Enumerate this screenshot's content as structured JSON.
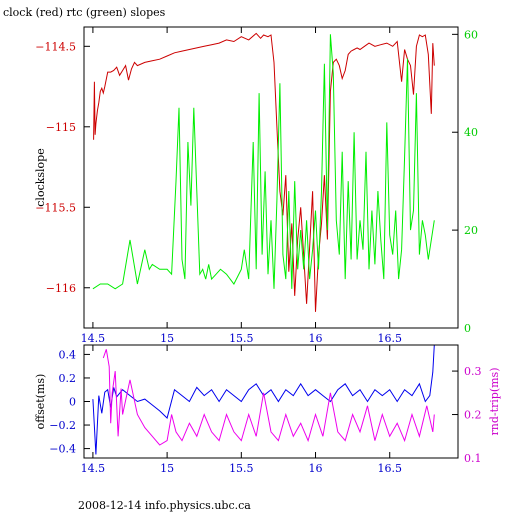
{
  "title": "clock (red) rtc (green) slopes",
  "footer": "2008-12-14 info.physics.ubc.ca",
  "chart_data": [
    {
      "type": "line",
      "title": "clock (red) rtc (green) slopes",
      "xlabel": "",
      "ylabel": "clockslope",
      "y2label": "",
      "xlim": [
        14.44,
        16.96
      ],
      "ylim": [
        -116.25,
        -114.38
      ],
      "y2lim": [
        0,
        61.5
      ],
      "xticks": [
        "14.5",
        "15",
        "15.5",
        "16",
        "16.5"
      ],
      "xtick_values": [
        14.5,
        15,
        15.5,
        16,
        16.5
      ],
      "yticks": [
        "-114.5",
        "-115",
        "-115.5",
        "-116"
      ],
      "ytick_values": [
        -114.5,
        -115,
        -115.5,
        -116
      ],
      "y2ticks": [
        "0",
        "20",
        "40",
        "60"
      ],
      "y2tick_values": [
        0,
        20,
        40,
        60
      ],
      "colors": {
        "axes_left": "#cc0000",
        "axes_right": "#00cc00",
        "frame": "#000000"
      },
      "series": [
        {
          "name": "clock",
          "axis": "left",
          "color": "#cc0000",
          "x": [
            14.505,
            14.51,
            14.515,
            14.52,
            14.53,
            14.54,
            14.55,
            14.56,
            14.57,
            14.58,
            14.6,
            14.62,
            14.64,
            14.66,
            14.68,
            14.7,
            14.72,
            14.74,
            14.76,
            14.78,
            14.8,
            14.85,
            14.9,
            14.95,
            15.0,
            15.05,
            15.1,
            15.15,
            15.2,
            15.25,
            15.3,
            15.35,
            15.4,
            15.45,
            15.5,
            15.55,
            15.6,
            15.63,
            15.65,
            15.68,
            15.7,
            15.72,
            15.74,
            15.76,
            15.78,
            15.8,
            15.82,
            15.84,
            15.86,
            15.88,
            15.9,
            15.92,
            15.94,
            15.96,
            15.98,
            16.0,
            16.02,
            16.04,
            16.06,
            16.08,
            16.1,
            16.12,
            16.14,
            16.16,
            16.18,
            16.2,
            16.22,
            16.24,
            16.26,
            16.28,
            16.3,
            16.33,
            16.36,
            16.4,
            16.44,
            16.48,
            16.52,
            16.55,
            16.58,
            16.6,
            16.62,
            16.64,
            16.66,
            16.68,
            16.7,
            16.72,
            16.74,
            16.76,
            16.78,
            16.79,
            16.8
          ],
          "y": [
            -115.08,
            -114.72,
            -115.05,
            -114.98,
            -114.9,
            -114.85,
            -114.78,
            -114.76,
            -114.79,
            -114.75,
            -114.66,
            -114.66,
            -114.65,
            -114.63,
            -114.68,
            -114.65,
            -114.62,
            -114.71,
            -114.64,
            -114.6,
            -114.62,
            -114.6,
            -114.59,
            -114.58,
            -114.56,
            -114.54,
            -114.53,
            -114.52,
            -114.51,
            -114.5,
            -114.49,
            -114.48,
            -114.46,
            -114.47,
            -114.44,
            -114.46,
            -114.42,
            -114.45,
            -114.43,
            -114.44,
            -114.43,
            -114.6,
            -115.0,
            -115.4,
            -115.55,
            -115.3,
            -115.9,
            -115.6,
            -116.05,
            -115.7,
            -115.5,
            -115.8,
            -116.1,
            -115.75,
            -115.4,
            -116.15,
            -115.8,
            -115.6,
            -115.3,
            -115.7,
            -114.78,
            -114.6,
            -114.58,
            -114.62,
            -114.7,
            -114.65,
            -114.55,
            -114.53,
            -114.52,
            -114.51,
            -114.52,
            -114.5,
            -114.48,
            -114.5,
            -114.49,
            -114.48,
            -114.5,
            -114.47,
            -114.72,
            -114.52,
            -114.58,
            -114.62,
            -114.8,
            -114.5,
            -114.43,
            -114.44,
            -114.43,
            -114.55,
            -114.92,
            -114.48,
            -114.62
          ]
        },
        {
          "name": "rtc",
          "axis": "right",
          "color": "#00ee00",
          "x": [
            14.5,
            14.55,
            14.6,
            14.65,
            14.7,
            14.75,
            14.8,
            14.85,
            14.88,
            14.9,
            14.95,
            15.0,
            15.03,
            15.06,
            15.08,
            15.1,
            15.12,
            15.14,
            15.16,
            15.18,
            15.2,
            15.22,
            15.24,
            15.26,
            15.28,
            15.3,
            15.33,
            15.36,
            15.4,
            15.45,
            15.5,
            15.52,
            15.55,
            15.58,
            15.6,
            15.62,
            15.64,
            15.66,
            15.68,
            15.7,
            15.72,
            15.74,
            15.76,
            15.78,
            15.8,
            15.82,
            15.84,
            15.86,
            15.88,
            15.9,
            15.92,
            15.94,
            15.96,
            15.98,
            16.0,
            16.02,
            16.04,
            16.06,
            16.08,
            16.1,
            16.12,
            16.14,
            16.16,
            16.18,
            16.2,
            16.22,
            16.24,
            16.26,
            16.28,
            16.3,
            16.32,
            16.34,
            16.36,
            16.38,
            16.4,
            16.42,
            16.44,
            16.46,
            16.48,
            16.5,
            16.52,
            16.54,
            16.56,
            16.58,
            16.6,
            16.62,
            16.64,
            16.66,
            16.68,
            16.7,
            16.72,
            16.74,
            16.76,
            16.78,
            16.8
          ],
          "y": [
            8,
            9,
            9,
            8,
            9,
            18,
            9,
            16,
            12,
            13,
            12,
            12,
            11,
            30,
            45,
            14,
            10,
            38,
            25,
            45,
            28,
            11,
            12,
            10,
            13,
            10,
            11,
            12,
            11,
            9,
            12,
            16,
            10,
            38,
            12,
            48,
            15,
            32,
            11,
            22,
            8,
            26,
            50,
            15,
            10,
            28,
            8,
            30,
            12,
            20,
            12,
            22,
            10,
            16,
            24,
            12,
            28,
            54,
            20,
            60,
            52,
            22,
            15,
            36,
            10,
            30,
            14,
            40,
            14,
            22,
            16,
            36,
            12,
            24,
            13,
            28,
            18,
            10,
            42,
            19,
            15,
            24,
            10,
            16,
            35,
            55,
            20,
            24,
            48,
            15,
            22,
            19,
            14,
            18,
            22
          ]
        }
      ]
    },
    {
      "type": "line",
      "title": "",
      "xlabel": "",
      "ylabel": "offset(ms)",
      "y2label": "rnd-trip(ms)",
      "xlim": [
        14.44,
        16.96
      ],
      "ylim": [
        -0.48,
        0.48
      ],
      "y2lim": [
        0.1,
        0.36
      ],
      "xticks": [
        "14.5",
        "15",
        "15.5",
        "16",
        "16.5"
      ],
      "xtick_values": [
        14.5,
        15,
        15.5,
        16,
        16.5
      ],
      "yticks": [
        "0.4",
        "0.2",
        "0",
        "-0.2",
        "-0.4"
      ],
      "ytick_values": [
        0.4,
        0.2,
        0,
        -0.2,
        -0.4
      ],
      "y2ticks": [
        "0.3",
        "0.2",
        "0.1"
      ],
      "y2tick_values": [
        0.3,
        0.2,
        0.1
      ],
      "colors": {
        "axes_left": "#0000cc",
        "axes_right": "#cc00cc",
        "frame": "#000000"
      },
      "series": [
        {
          "name": "offset",
          "axis": "left",
          "color": "#0000ee",
          "x": [
            14.5,
            14.52,
            14.54,
            14.56,
            14.58,
            14.6,
            14.62,
            14.64,
            14.66,
            14.7,
            14.75,
            14.8,
            14.85,
            14.9,
            14.95,
            15.0,
            15.05,
            15.1,
            15.15,
            15.2,
            15.25,
            15.3,
            15.35,
            15.4,
            15.45,
            15.5,
            15.55,
            15.6,
            15.65,
            15.7,
            15.75,
            15.8,
            15.85,
            15.9,
            15.95,
            16.0,
            16.05,
            16.1,
            16.15,
            16.2,
            16.25,
            16.3,
            16.35,
            16.4,
            16.45,
            16.5,
            16.55,
            16.6,
            16.65,
            16.7,
            16.74,
            16.77,
            16.79,
            16.8
          ],
          "y": [
            0.02,
            -0.45,
            0.05,
            -0.1,
            0.08,
            0.1,
            -0.05,
            0.12,
            0.04,
            0.1,
            0.05,
            0.0,
            0.02,
            -0.03,
            -0.08,
            -0.14,
            0.1,
            0.05,
            0.0,
            0.12,
            0.05,
            0.1,
            0.0,
            0.1,
            0.05,
            0.0,
            0.1,
            0.15,
            0.05,
            0.1,
            0.0,
            0.1,
            0.05,
            0.15,
            0.05,
            0.1,
            0.05,
            0.0,
            0.1,
            0.15,
            0.05,
            0.1,
            0.0,
            0.1,
            0.05,
            0.1,
            0.0,
            0.1,
            0.05,
            0.15,
            0.0,
            0.05,
            0.25,
            0.48
          ]
        },
        {
          "name": "rnd-trip",
          "axis": "right",
          "color": "#ee00ee",
          "x": [
            14.57,
            14.59,
            14.61,
            14.62,
            14.63,
            14.65,
            14.67,
            14.69,
            14.7,
            14.75,
            14.8,
            14.85,
            14.9,
            14.95,
            15.0,
            15.03,
            15.06,
            15.1,
            15.15,
            15.2,
            15.25,
            15.3,
            15.35,
            15.4,
            15.45,
            15.5,
            15.55,
            15.6,
            15.65,
            15.7,
            15.75,
            15.8,
            15.85,
            15.9,
            15.95,
            16.0,
            16.05,
            16.1,
            16.15,
            16.2,
            16.25,
            16.3,
            16.35,
            16.4,
            16.45,
            16.5,
            16.55,
            16.6,
            16.65,
            16.7,
            16.75,
            16.79,
            16.8
          ],
          "y": [
            0.33,
            0.35,
            0.31,
            0.18,
            0.25,
            0.3,
            0.15,
            0.26,
            0.2,
            0.28,
            0.2,
            0.17,
            0.15,
            0.13,
            0.14,
            0.2,
            0.16,
            0.14,
            0.18,
            0.15,
            0.2,
            0.16,
            0.14,
            0.2,
            0.16,
            0.14,
            0.2,
            0.15,
            0.25,
            0.16,
            0.14,
            0.2,
            0.15,
            0.18,
            0.14,
            0.2,
            0.15,
            0.25,
            0.16,
            0.14,
            0.2,
            0.16,
            0.22,
            0.14,
            0.2,
            0.15,
            0.18,
            0.14,
            0.2,
            0.15,
            0.22,
            0.16,
            0.2
          ]
        }
      ]
    }
  ]
}
